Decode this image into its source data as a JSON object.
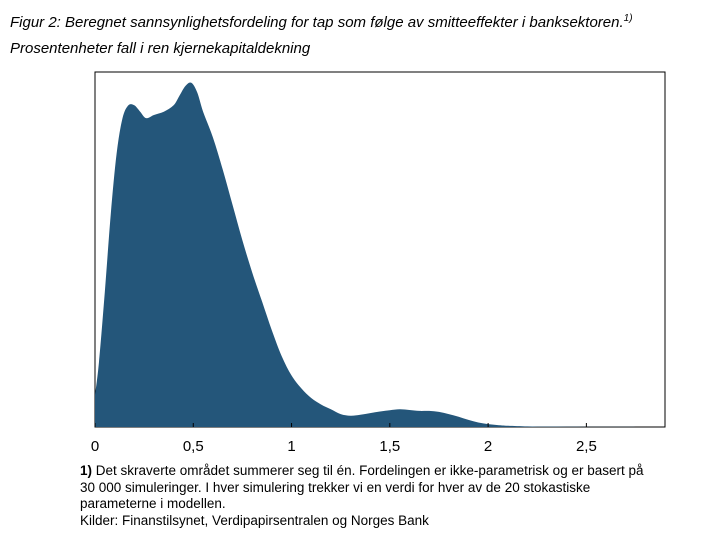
{
  "title": {
    "line1": "Figur 2: Beregnet sannsynlighetsfordeling for tap som følge av smitteeffekter i banksektoren.",
    "superscript": "1)",
    "line2": "Prosentenheter fall i ren kjernekapitaldekning"
  },
  "chart_data": {
    "type": "area",
    "xlabel": "",
    "ylabel": "",
    "xlim": [
      0,
      2.9
    ],
    "ylim": [
      0,
      1.06
    ],
    "grid": false,
    "color": "#24567a",
    "x_ticks": [
      0,
      0.5,
      1,
      1.5,
      2,
      2.5
    ],
    "x_tick_labels": [
      "0",
      "0,5",
      "1",
      "1,5",
      "2",
      "2,5"
    ],
    "x": [
      0,
      0.02,
      0.05,
      0.08,
      0.11,
      0.14,
      0.17,
      0.2,
      0.23,
      0.26,
      0.3,
      0.35,
      0.4,
      0.43,
      0.46,
      0.49,
      0.52,
      0.55,
      0.6,
      0.65,
      0.7,
      0.75,
      0.8,
      0.85,
      0.9,
      0.95,
      1.0,
      1.05,
      1.1,
      1.15,
      1.2,
      1.25,
      1.3,
      1.35,
      1.4,
      1.45,
      1.5,
      1.55,
      1.6,
      1.65,
      1.7,
      1.75,
      1.8,
      1.85,
      1.9,
      1.95,
      2.0,
      2.05,
      2.1,
      2.2,
      2.3,
      2.4,
      2.5,
      2.6,
      2.7,
      2.85
    ],
    "y": [
      0.1,
      0.2,
      0.42,
      0.66,
      0.85,
      0.96,
      1.0,
      1.0,
      0.98,
      0.96,
      0.97,
      0.98,
      1.0,
      1.03,
      1.06,
      1.07,
      1.04,
      0.98,
      0.9,
      0.8,
      0.69,
      0.58,
      0.48,
      0.39,
      0.3,
      0.22,
      0.16,
      0.12,
      0.09,
      0.07,
      0.055,
      0.04,
      0.035,
      0.038,
      0.043,
      0.048,
      0.052,
      0.055,
      0.053,
      0.05,
      0.05,
      0.047,
      0.04,
      0.032,
      0.022,
      0.014,
      0.009,
      0.006,
      0.004,
      0.002,
      0.001,
      0.0008,
      0.0005,
      0.0003,
      0.0002,
      0
    ]
  },
  "footnote": {
    "marker": "1)",
    "text_line1": " Det skraverte området summerer seg til én. Fordelingen er ikke-parametrisk og er basert på",
    "text_line2": "30 000 simuleringer. I hver simulering trekker vi en verdi for hver av de 20 stokastiske",
    "text_line3": "parameterne i modellen.",
    "sources": "Kilder: Finanstilsynet, Verdipapirsentralen og Norges Bank"
  }
}
